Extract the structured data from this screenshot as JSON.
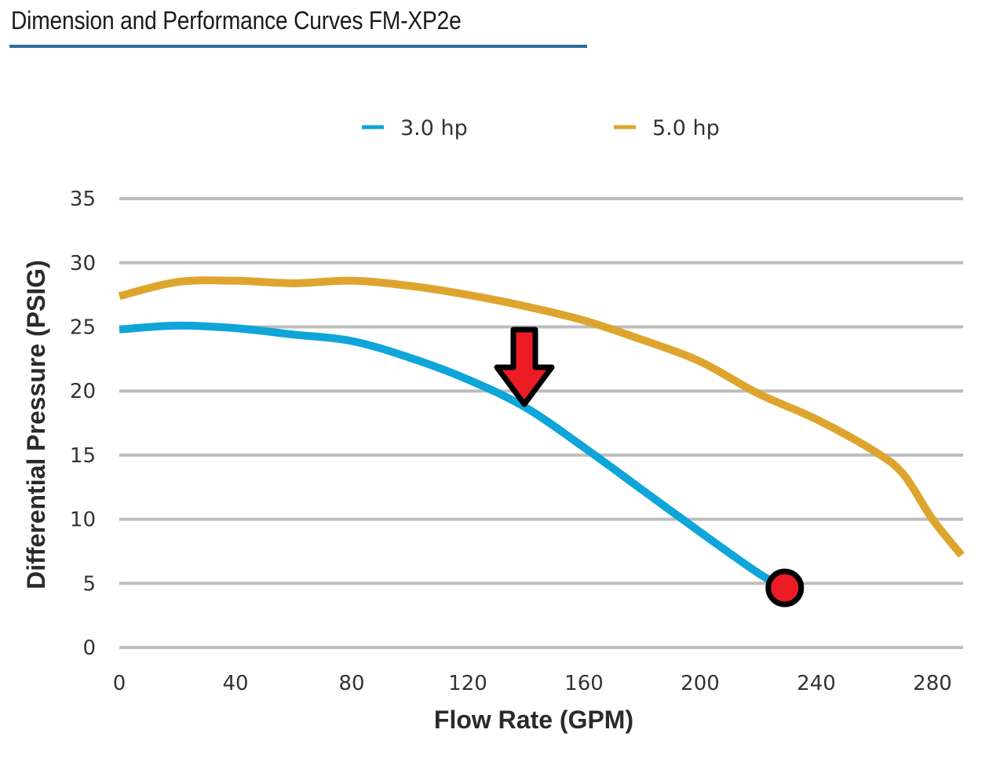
{
  "page": {
    "title": "Dimension and Performance Curves FM-XP2e",
    "title_rule_color": "#2e6d9b"
  },
  "chart_data": {
    "type": "line",
    "title": "Dimension and Performance Curves FM-XP2e",
    "xlabel": "Flow Rate (GPM)",
    "ylabel": "Differential Pressure (PSIG)",
    "xlim": [
      0,
      290
    ],
    "ylim": [
      0,
      35
    ],
    "xticks": [
      0,
      40,
      80,
      120,
      160,
      200,
      240,
      280
    ],
    "yticks": [
      0,
      5,
      10,
      15,
      20,
      25,
      30,
      35
    ],
    "grid": "horizontal",
    "legend_position": "top-center",
    "series": [
      {
        "name": "3.0 hp",
        "color": "#0ea5d8",
        "x": [
          0,
          20,
          40,
          60,
          80,
          100,
          120,
          140,
          160,
          180,
          200,
          220,
          228
        ],
        "y": [
          24.8,
          25.1,
          24.9,
          24.4,
          23.9,
          22.6,
          20.9,
          18.7,
          15.6,
          12.3,
          9.0,
          5.8,
          4.8
        ]
      },
      {
        "name": "5.0 hp",
        "color": "#dea52e",
        "x": [
          0,
          20,
          40,
          60,
          80,
          100,
          120,
          140,
          160,
          180,
          200,
          220,
          240,
          260,
          270,
          280,
          290
        ],
        "y": [
          27.4,
          28.5,
          28.6,
          28.4,
          28.6,
          28.2,
          27.5,
          26.6,
          25.5,
          24.0,
          22.3,
          19.8,
          17.8,
          15.3,
          13.5,
          10.0,
          7.2
        ]
      }
    ],
    "annotations": [
      {
        "type": "arrow-down",
        "x": 140,
        "y": 18.7,
        "color": "#ed1c24",
        "description": "Red arrow pointing at 3.0 hp curve"
      },
      {
        "type": "circle-marker",
        "x": 229,
        "y": 4.6,
        "color": "#ed1c24",
        "description": "Red dot at end of 3.0 hp curve"
      }
    ]
  }
}
